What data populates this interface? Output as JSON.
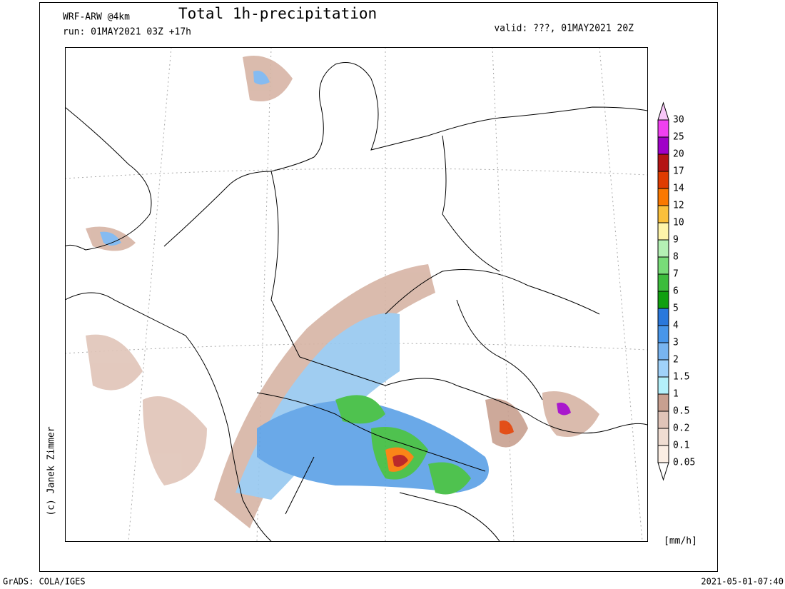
{
  "header": {
    "model": "WRF-ARW @4km",
    "title": "Total 1h-precipitation",
    "run": "run: 01MAY2021 03Z +17h",
    "valid": "valid: ???, 01MAY2021 20Z"
  },
  "credit": "(c) Janek Zimmer",
  "colorbar": {
    "bounds": [
      0.05,
      0.1,
      0.2,
      0.5,
      1,
      1.5,
      2,
      3,
      4,
      5,
      6,
      7,
      8,
      9,
      10,
      12,
      14,
      17,
      20,
      25,
      30
    ],
    "colors": [
      "#ffffff",
      "#fbeee4",
      "#f0ddd2",
      "#e0c4b8",
      "#c8a090",
      "#b4f0fa",
      "#a0d2fa",
      "#78b4f0",
      "#4896ea",
      "#2a78dc",
      "#10a010",
      "#3cbc3c",
      "#78dc78",
      "#b4f0b4",
      "#fff5aa",
      "#fac03c",
      "#fa7800",
      "#e03c00",
      "#b41414",
      "#a000c8",
      "#f040f0",
      "#f8c8f8"
    ],
    "unit": "[mm/h]"
  },
  "footer": {
    "left": "GrADS: COLA/IGES",
    "right": "2021-05-01-07:40"
  }
}
